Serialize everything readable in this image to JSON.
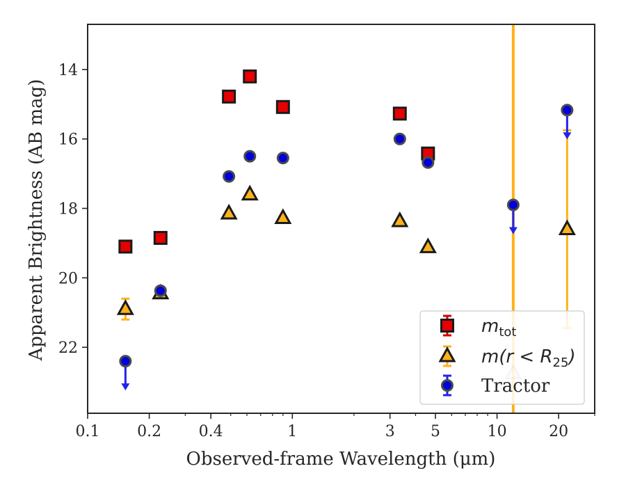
{
  "chart_data": {
    "type": "scatter",
    "xlabel": "Observed-frame Wavelength (μm)",
    "ylabel": "Apparent Brightness (AB mag)",
    "xscale": "log",
    "xlim": [
      0.1,
      30
    ],
    "ylim": [
      23.9,
      12.7
    ],
    "y_inverted": true,
    "grid": false,
    "legend_position": "lower-right",
    "x_ticks": [
      0.1,
      0.2,
      0.4,
      1,
      3,
      5,
      10,
      20
    ],
    "x_tick_labels": [
      "0.1",
      "0.2",
      "0.4",
      "1",
      "3",
      "5",
      "10",
      "20"
    ],
    "y_ticks": [
      14,
      16,
      18,
      20,
      22
    ],
    "y_tick_labels": [
      "14",
      "16",
      "18",
      "20",
      "22"
    ],
    "series": [
      {
        "name_base": "m",
        "name_sub": "tot",
        "marker": "square",
        "fill": "#e60000",
        "errcolor": "#d40000",
        "points": [
          {
            "x": 0.153,
            "y": 19.1
          },
          {
            "x": 0.227,
            "y": 18.85
          },
          {
            "x": 0.49,
            "y": 14.78
          },
          {
            "x": 0.62,
            "y": 14.2
          },
          {
            "x": 0.9,
            "y": 15.08
          },
          {
            "x": 3.35,
            "y": 15.27
          },
          {
            "x": 4.6,
            "y": 16.42
          }
        ]
      },
      {
        "name_base": "m(r < R",
        "name_sub": "25",
        "name_tail": ")",
        "marker": "triangle",
        "fill": "#ffb11b",
        "errcolor": "#ffb11b",
        "points": [
          {
            "x": 0.153,
            "y": 20.9,
            "err": 0.3
          },
          {
            "x": 0.227,
            "y": 20.45
          },
          {
            "x": 0.49,
            "y": 18.15
          },
          {
            "x": 0.62,
            "y": 17.6
          },
          {
            "x": 0.9,
            "y": 18.28
          },
          {
            "x": 3.35,
            "y": 18.37
          },
          {
            "x": 4.6,
            "y": 19.12
          },
          {
            "x": 12.0,
            "y": 22.75,
            "faded": true
          },
          {
            "x": 22.0,
            "y": 18.6,
            "err": 2.85
          }
        ]
      },
      {
        "name": "Tractor",
        "marker": "circle",
        "fill": "#0000dd",
        "errcolor": "#2222ee",
        "points": [
          {
            "x": 0.153,
            "y": 22.4,
            "upper_limit": true
          },
          {
            "x": 0.227,
            "y": 20.37
          },
          {
            "x": 0.49,
            "y": 17.08
          },
          {
            "x": 0.62,
            "y": 16.5
          },
          {
            "x": 0.9,
            "y": 16.55
          },
          {
            "x": 3.35,
            "y": 16.0
          },
          {
            "x": 4.6,
            "y": 16.68
          },
          {
            "x": 12.0,
            "y": 17.9,
            "upper_limit": true
          },
          {
            "x": 22.0,
            "y": 15.17,
            "upper_limit": true
          }
        ]
      }
    ],
    "vertical_errorbars": [
      {
        "x": 12.0,
        "y_from": 12.7,
        "y_to": 23.9,
        "color": "#ffb11b"
      }
    ]
  }
}
